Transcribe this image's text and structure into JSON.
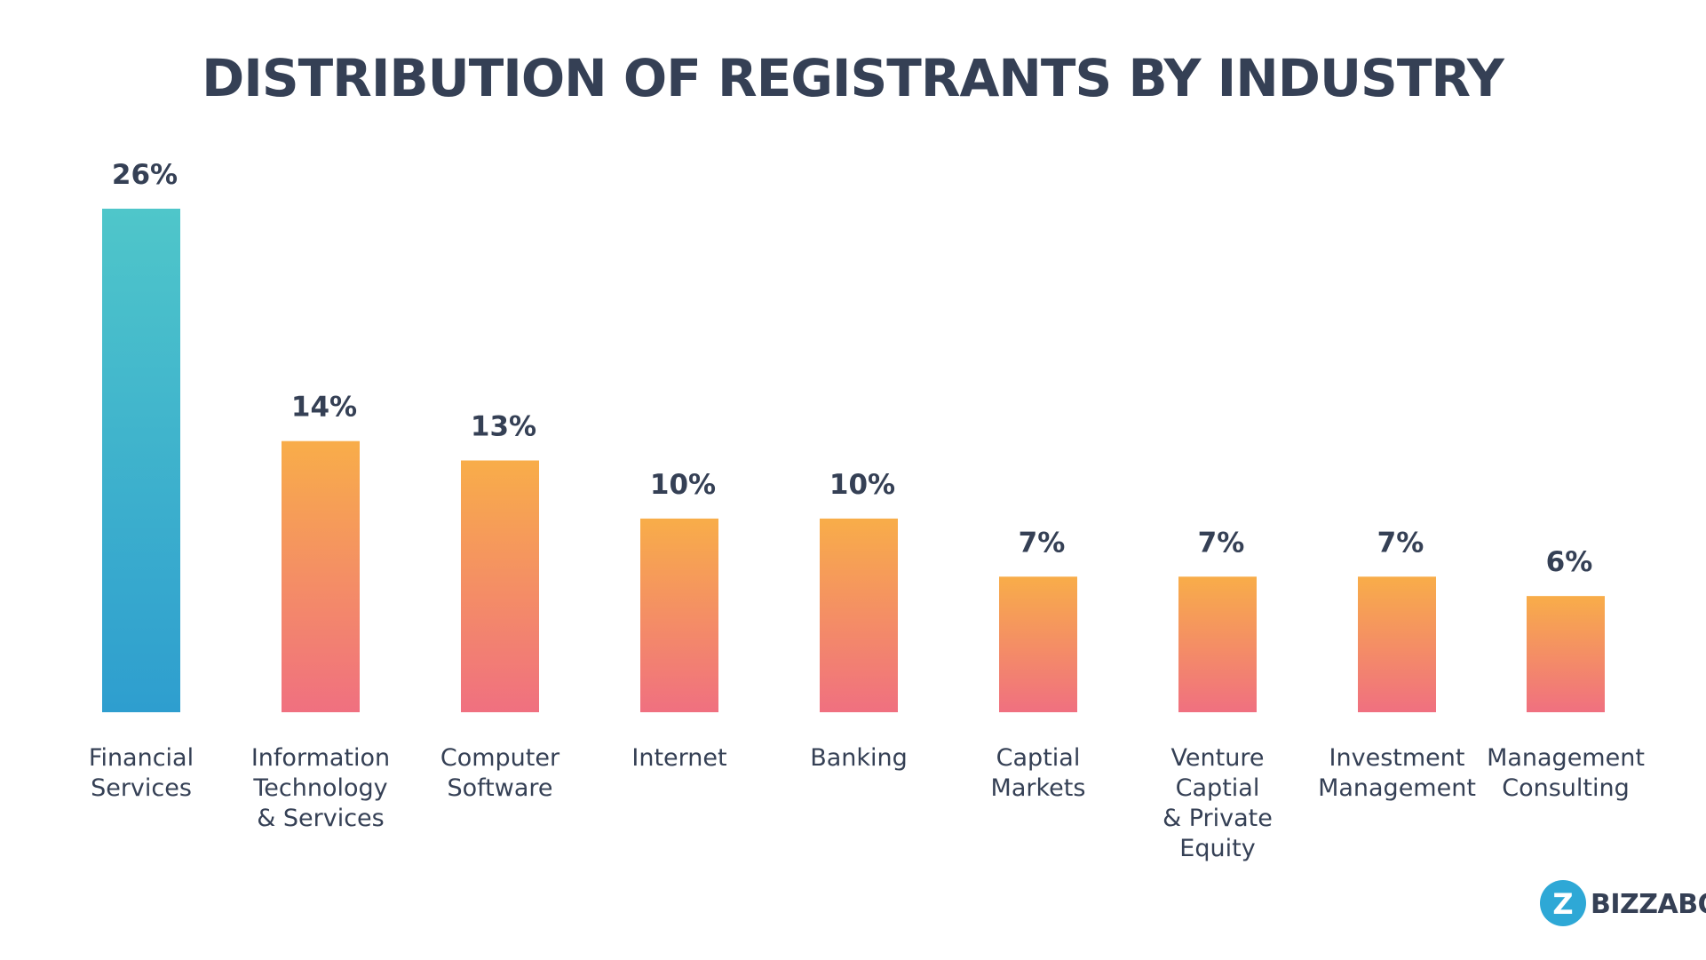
{
  "chart_data": {
    "type": "bar",
    "title": "DISTRIBUTION OF REGISTRANTS BY INDUSTRY",
    "categories": [
      [
        "Financial",
        "Services"
      ],
      [
        "Information",
        "Technology",
        "& Services"
      ],
      [
        "Computer",
        "Software"
      ],
      [
        "Internet"
      ],
      [
        "Banking"
      ],
      [
        "Captial",
        "Markets"
      ],
      [
        "Venture",
        "Captial",
        "& Private",
        "Equity"
      ],
      [
        "Investment",
        "Management"
      ],
      [
        "Management",
        "Consulting"
      ]
    ],
    "values": [
      26,
      14,
      13,
      10,
      10,
      7,
      7,
      7,
      6
    ],
    "value_labels": [
      "26%",
      "14%",
      "13%",
      "10%",
      "10%",
      "7%",
      "7%",
      "7%",
      "6%"
    ],
    "unit": "%",
    "xlabel": "",
    "ylabel": "",
    "ylim": [
      0,
      26
    ],
    "grid": false,
    "colors": {
      "highlight_top": "#4FC6CA",
      "highlight_bottom": "#2E9ECF",
      "bar_top": "#F8AD49",
      "bar_bottom": "#F07080",
      "text": "#354055"
    }
  },
  "brand": {
    "name": "BIZZABO",
    "icon": "bizzabo-logo-icon",
    "icon_glyph": "Z",
    "icon_color": "#2EA8D6"
  }
}
